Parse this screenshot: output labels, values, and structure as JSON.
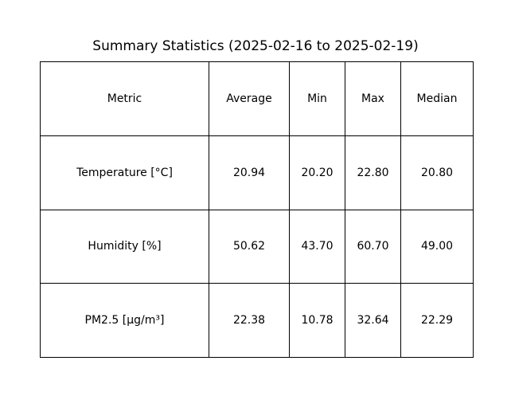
{
  "chart_data": {
    "type": "table",
    "title": "Summary Statistics (2025-02-16 to 2025-02-19)",
    "columns": [
      "Metric",
      "Average",
      "Min",
      "Max",
      "Median"
    ],
    "rows": [
      [
        "Temperature [°C]",
        "20.94",
        "20.20",
        "22.80",
        "20.80"
      ],
      [
        "Humidity [%]",
        "50.62",
        "43.70",
        "60.70",
        "49.00"
      ],
      [
        "PM2.5 [µg/m³]",
        "22.38",
        "10.78",
        "32.64",
        "22.29"
      ]
    ],
    "border_color": "#000000",
    "background_color": "#ffffff"
  }
}
